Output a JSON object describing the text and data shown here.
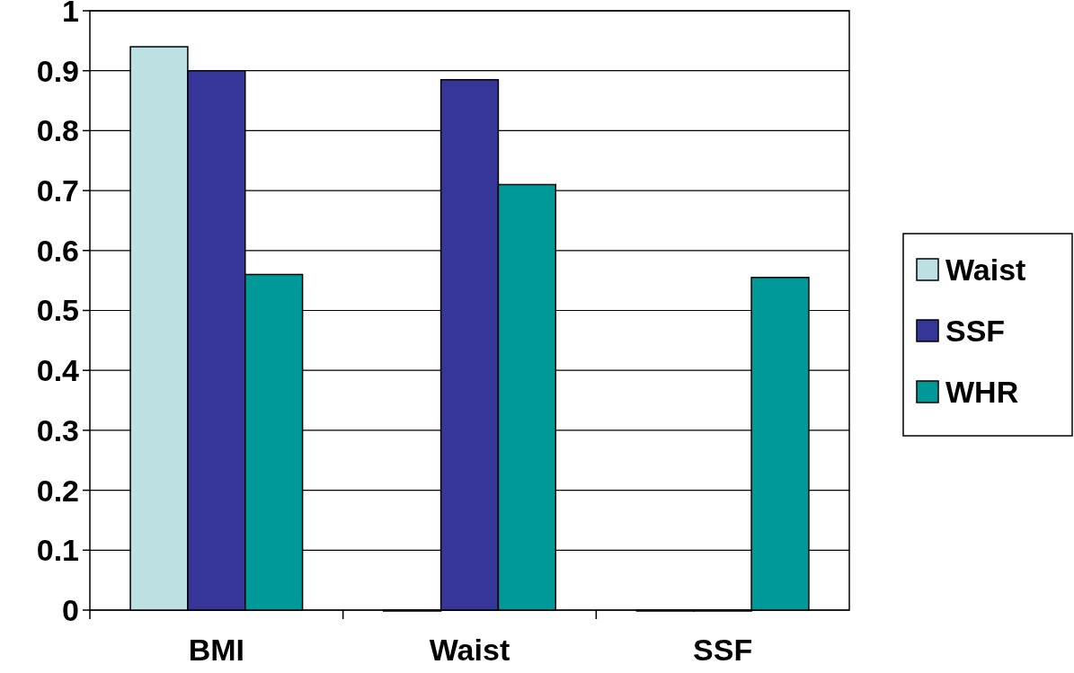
{
  "chart_data": {
    "type": "bar",
    "categories": [
      "BMI",
      "Waist",
      "SSF"
    ],
    "series": [
      {
        "name": "Waist",
        "color": "#bde0e3",
        "values": [
          0.94,
          0,
          0
        ]
      },
      {
        "name": "SSF",
        "color": "#363699",
        "values": [
          0.9,
          0.885,
          0
        ]
      },
      {
        "name": "WHR",
        "color": "#009999",
        "values": [
          0.56,
          0.71,
          0.555
        ]
      }
    ],
    "ylim": [
      0,
      1
    ],
    "yticks": [
      0,
      0.1,
      0.2,
      0.3,
      0.4,
      0.5,
      0.6,
      0.7,
      0.8,
      0.9,
      1
    ],
    "grid": "y",
    "legend": "right"
  }
}
